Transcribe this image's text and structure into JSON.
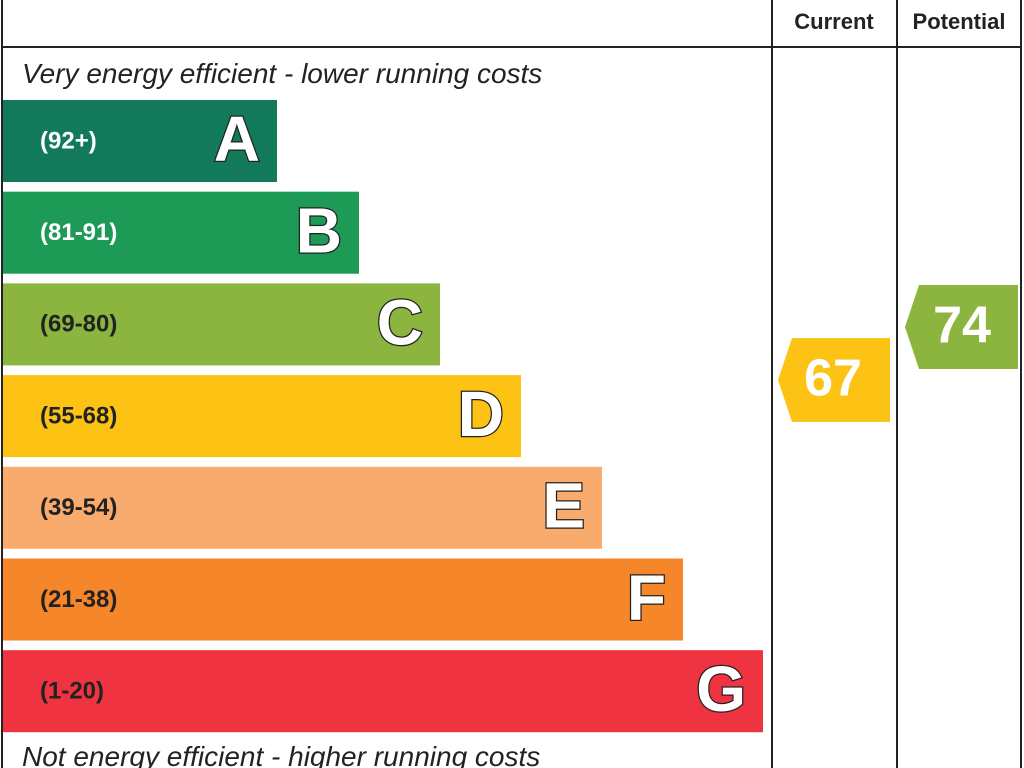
{
  "header": {
    "current": "Current",
    "potential": "Potential"
  },
  "top_note": "Very energy efficient - lower running costs",
  "bottom_note": "Not energy efficient - higher running costs",
  "bands": [
    {
      "range": "(92+)",
      "letter": "A",
      "color": "#127a5b",
      "text_color": "#ffffff"
    },
    {
      "range": "(81-91)",
      "letter": "B",
      "color": "#1d9a55",
      "text_color": "#ffffff"
    },
    {
      "range": "(69-80)",
      "letter": "C",
      "color": "#8bb53f",
      "text_color": "#222222"
    },
    {
      "range": "(55-68)",
      "letter": "D",
      "color": "#fcc314",
      "text_color": "#222222"
    },
    {
      "range": "(39-54)",
      "letter": "E",
      "color": "#f8ab6c",
      "text_color": "#222222"
    },
    {
      "range": "(21-38)",
      "letter": "F",
      "color": "#f5862a",
      "text_color": "#222222"
    },
    {
      "range": "(1-20)",
      "letter": "G",
      "color": "#ef3340",
      "text_color": "#222222"
    }
  ],
  "current": {
    "value": 67,
    "color": "#fcc314"
  },
  "potential": {
    "value": 74,
    "color": "#8bb53f"
  }
}
